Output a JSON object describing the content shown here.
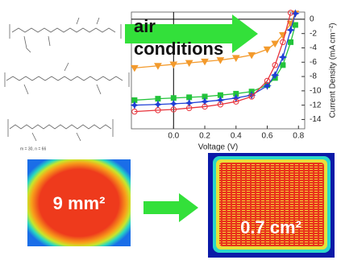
{
  "chart_data": {
    "type": "line",
    "xlabel": "Voltage (V)",
    "ylabel": "Current Density (mA cm⁻²)",
    "x": [
      -0.25,
      -0.1,
      0,
      0.1,
      0.2,
      0.3,
      0.4,
      0.5,
      0.6,
      0.65,
      0.7,
      0.75,
      0.78
    ],
    "xlim": [
      -0.27,
      0.84
    ],
    "xticks": [
      {
        "value": 0,
        "label": "0.0"
      },
      0.2,
      0.4,
      0.6,
      0.8
    ],
    "ylim": [
      -15.3,
      1
    ],
    "yticks": [
      0,
      -2,
      -4,
      -6,
      -8,
      -10,
      -12,
      -14
    ],
    "series": [
      {
        "color": "#f39a2c",
        "marker": "triangle-down",
        "values": [
          -6.8,
          -6.5,
          -6.3,
          -6.1,
          -5.9,
          -5.7,
          -5.4,
          -5.0,
          -4.2,
          -3.4,
          -2.2,
          -0.6,
          0.8
        ]
      },
      {
        "color": "#22c33a",
        "marker": "square",
        "values": [
          -11.3,
          -11.1,
          -11.0,
          -10.9,
          -10.8,
          -10.6,
          -10.4,
          -10.1,
          -9.2,
          -8.2,
          -6.4,
          -3.2,
          -0.8
        ]
      },
      {
        "color": "#1f3fd6",
        "marker": "star",
        "values": [
          -12.0,
          -11.9,
          -11.8,
          -11.7,
          -11.5,
          -11.3,
          -11.0,
          -10.6,
          -9.3,
          -7.8,
          -5.3,
          -1.5,
          0.8
        ]
      },
      {
        "color": "#e8323a",
        "marker": "open-circle",
        "values": [
          -12.9,
          -12.7,
          -12.6,
          -12.4,
          -12.2,
          -11.9,
          -11.5,
          -10.8,
          -8.6,
          -6.4,
          -3.2,
          0.9,
          null
        ]
      }
    ]
  },
  "overlay_text": [
    "air",
    "conditions"
  ],
  "polymer_note": "m = 30, n = 66",
  "small_device_label": "9 mm²",
  "large_device_label": "0.7 cm²"
}
